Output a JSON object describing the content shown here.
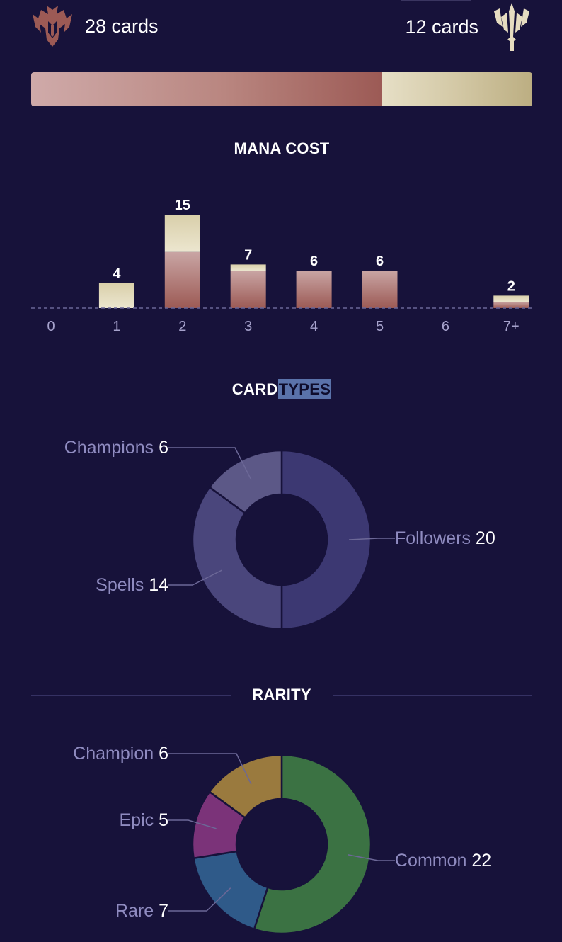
{
  "header": {
    "left_count": "28 cards",
    "right_count": "12 cards",
    "left_icon": "noxus-region-icon",
    "right_icon": "demacia-region-icon"
  },
  "colors": {
    "background": "#17123a",
    "region_a": "#9c5a55",
    "region_b": "#d3c8a5",
    "label": "#8f8bc0"
  },
  "split": {
    "left": 28,
    "right": 12
  },
  "sections": {
    "mana_title": "MANA COST",
    "types_title_a": "CARD",
    "types_title_b": "TYPES",
    "rarity_title": "RARITY"
  },
  "chart_data": [
    {
      "type": "bar",
      "title": "MANA COST",
      "categories": [
        "0",
        "1",
        "2",
        "3",
        "4",
        "5",
        "6",
        "7+"
      ],
      "totals": [
        0,
        4,
        15,
        7,
        6,
        6,
        0,
        2
      ],
      "series": [
        {
          "values": [
            0,
            0,
            9,
            6,
            6,
            6,
            0,
            1
          ],
          "color": "#9c5a55"
        },
        {
          "values": [
            0,
            4,
            6,
            1,
            0,
            0,
            0,
            1
          ],
          "color": "#d3c8a5"
        }
      ]
    },
    {
      "type": "pie",
      "title": "CARD TYPES",
      "slices": [
        {
          "label": "Followers",
          "value": 20,
          "color": "#3c3872"
        },
        {
          "label": "Spells",
          "value": 14,
          "color": "#4a467c"
        },
        {
          "label": "Champions",
          "value": 6,
          "color": "#5c5887"
        }
      ]
    },
    {
      "type": "pie",
      "title": "RARITY",
      "slices": [
        {
          "label": "Common",
          "value": 22,
          "color": "#3b7243"
        },
        {
          "label": "Rare",
          "value": 7,
          "color": "#2f5a89"
        },
        {
          "label": "Epic",
          "value": 5,
          "color": "#7b3379"
        },
        {
          "label": "Champion",
          "value": 6,
          "color": "#9a7a3e"
        }
      ]
    }
  ]
}
